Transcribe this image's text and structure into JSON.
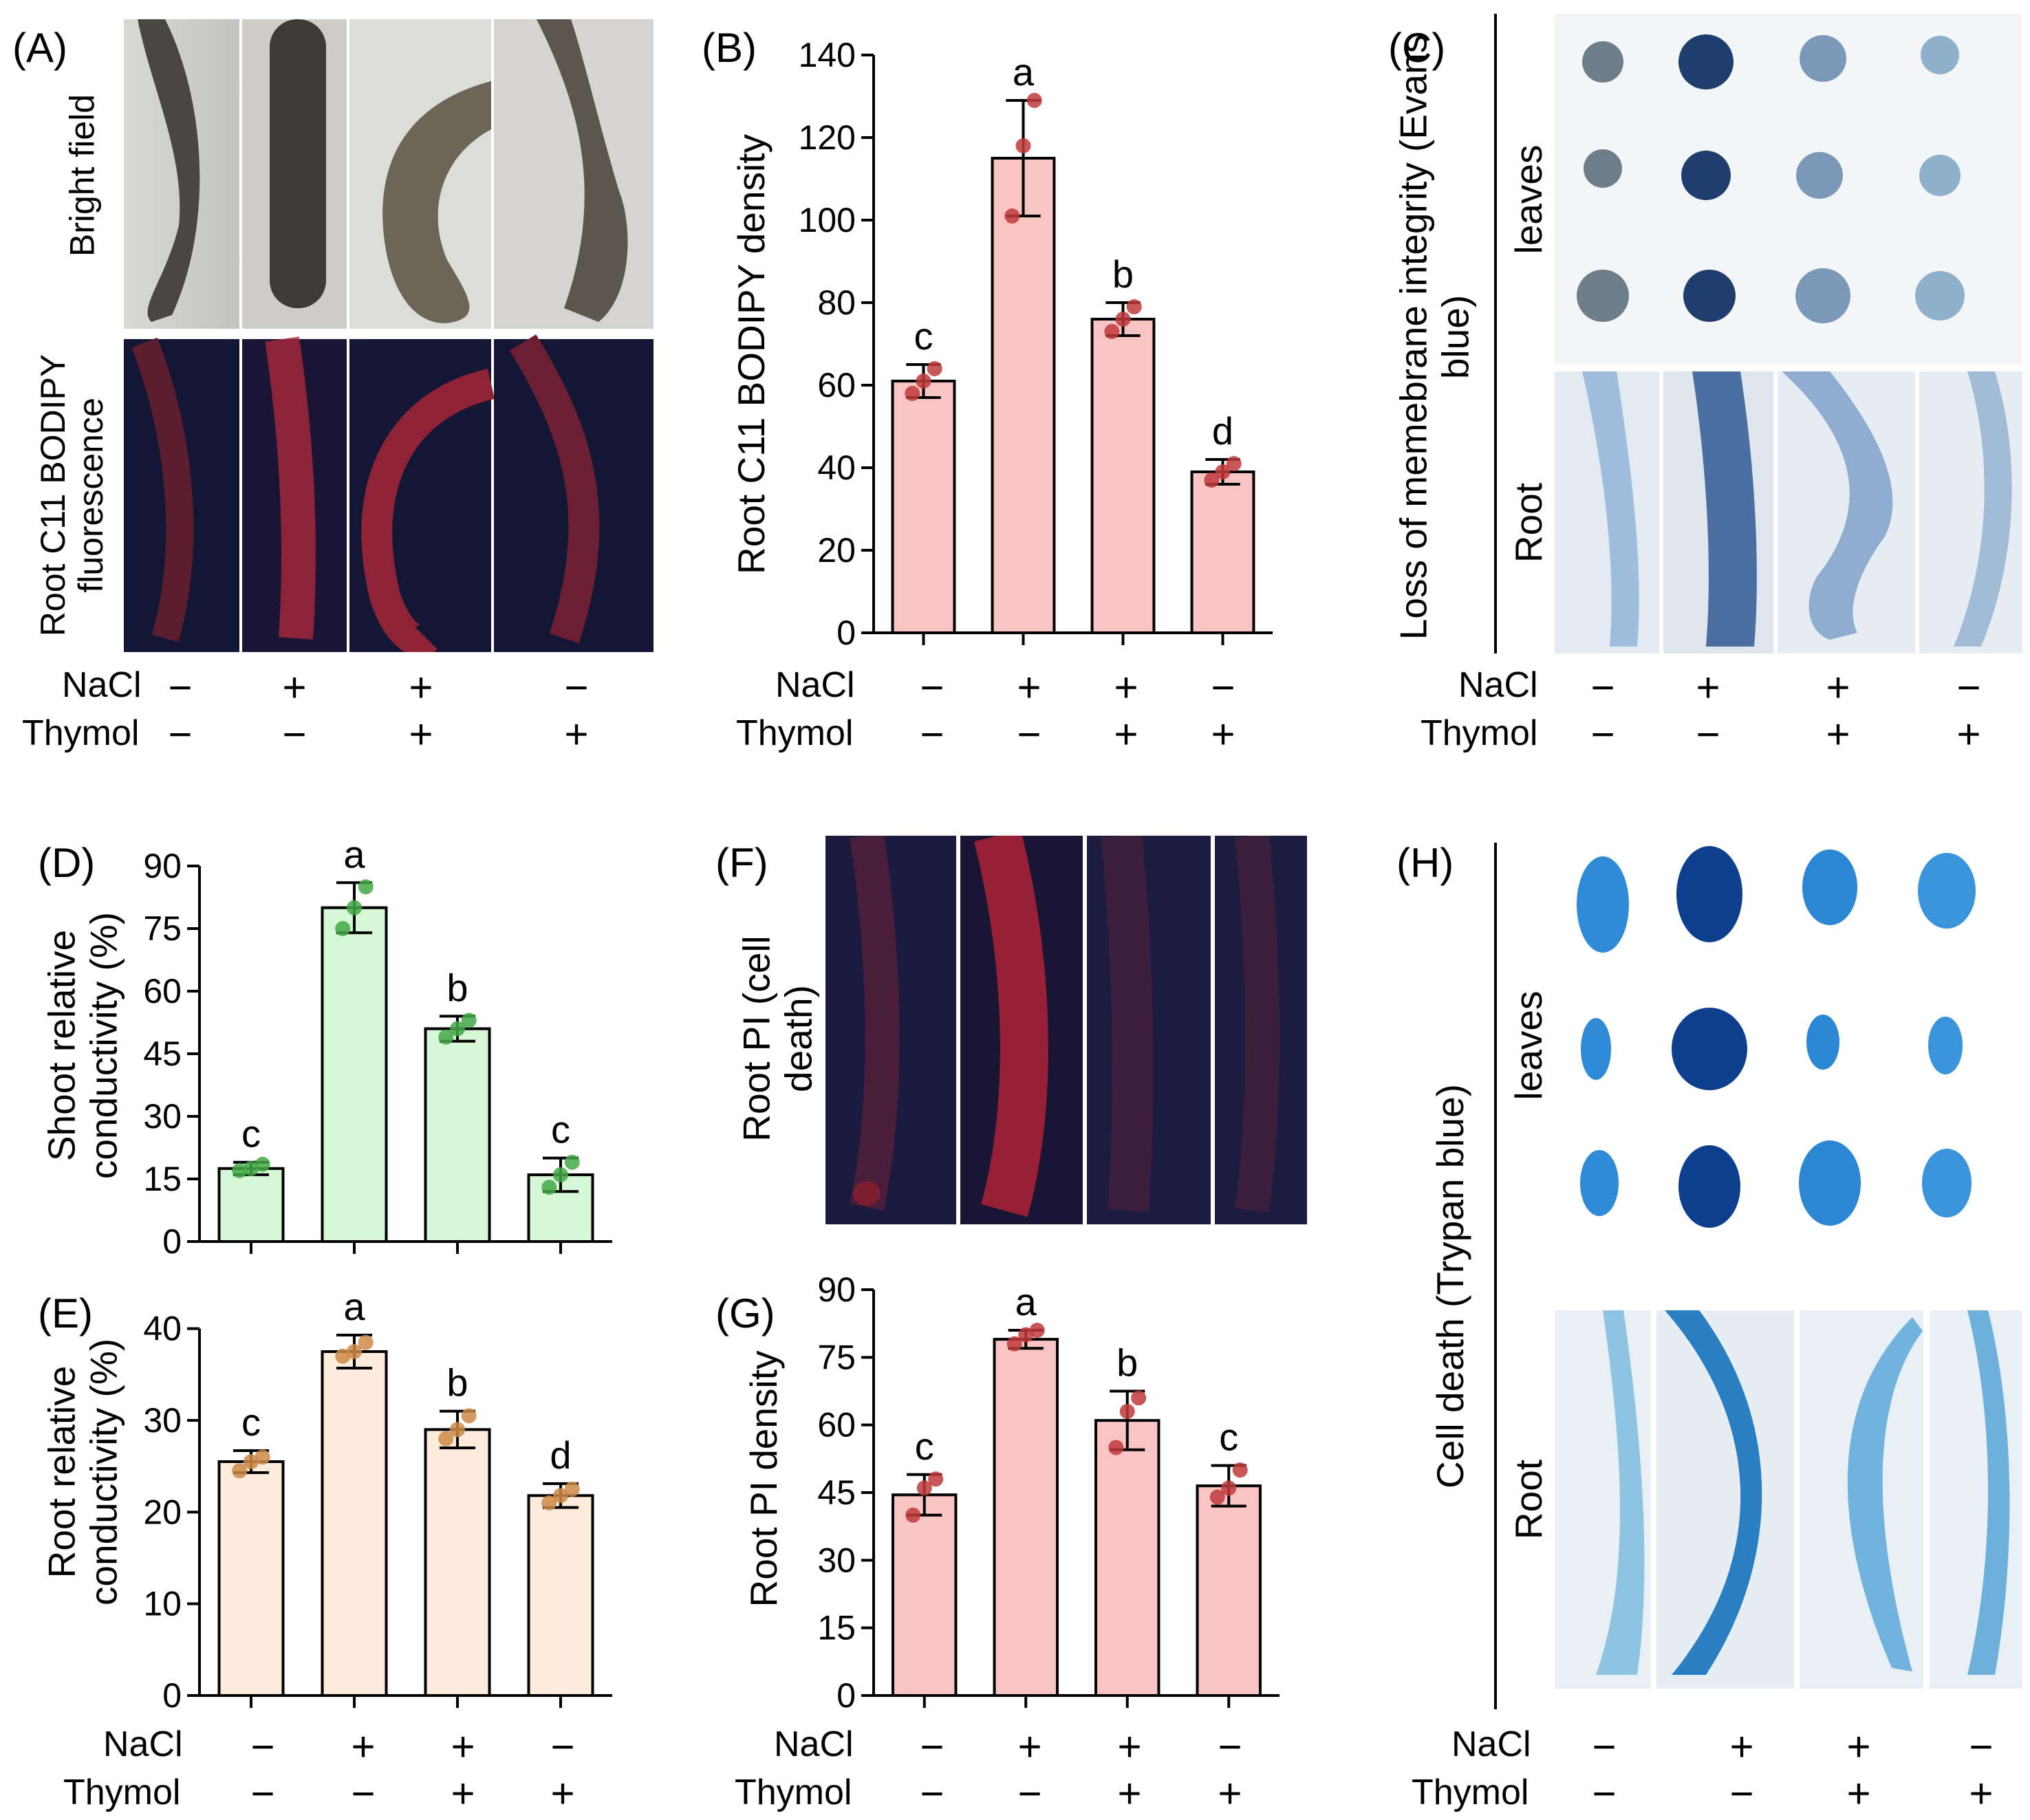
{
  "panels": {
    "A": {
      "label": "(A)",
      "row_labels": [
        "Bright field",
        "Root C11 BODIPY fluorescence"
      ]
    },
    "C": {
      "label": "(C)",
      "ylabel": "Loss of memebrane integrity (Evans blue)",
      "row_labels": [
        "leaves",
        "Root"
      ]
    },
    "F": {
      "label": "(F)",
      "ylabel": "Root PI (cell death)"
    },
    "H": {
      "label": "(H)",
      "ylabel": "Cell death (Trypan blue)",
      "row_labels": [
        "leaves",
        "Root"
      ]
    }
  },
  "treatments": {
    "row_names": [
      "NaCl",
      "Thymol"
    ],
    "NaCl": [
      "−",
      "+",
      "+",
      "−"
    ],
    "Thymol": [
      "−",
      "−",
      "+",
      "+"
    ]
  },
  "colors": {
    "pink_bar": "#f9c4c4",
    "pink_dot": "#c0393b",
    "green_bar": "#d6f8d6",
    "green_dot": "#43a845",
    "peach_bar": "#fdebdc",
    "peach_dot": "#cd8a46",
    "evans_blue": "#4f84b8",
    "trypan_blue": "#2a7fd0",
    "fluorescence_bg": "#141635",
    "fluorescence_red": "#d42a3a"
  },
  "chart_data": [
    {
      "panel": "(B)",
      "type": "bar",
      "ylabel": "Root C11 BODIPY density",
      "ylim": [
        0,
        140
      ],
      "yticks": [
        0,
        20,
        40,
        60,
        80,
        100,
        120,
        140
      ],
      "categories": [
        "NaCl− Thymol−",
        "NaCl+ Thymol−",
        "NaCl+ Thymol+",
        "NaCl− Thymol+"
      ],
      "values": [
        61,
        115,
        76,
        39
      ],
      "errors": [
        4,
        14,
        4,
        3
      ],
      "points": [
        [
          58,
          61,
          64
        ],
        [
          101,
          118,
          129
        ],
        [
          73,
          76,
          79
        ],
        [
          37,
          39,
          41
        ]
      ],
      "letters": [
        "c",
        "a",
        "b",
        "d"
      ]
    },
    {
      "panel": "(D)",
      "type": "bar",
      "ylabel": "Shoot relative conductivity (%)",
      "ylim": [
        0,
        90
      ],
      "yticks": [
        0,
        15,
        30,
        45,
        60,
        75,
        90
      ],
      "categories": [
        "NaCl− Thymol−",
        "NaCl+ Thymol−",
        "NaCl+ Thymol+",
        "NaCl− Thymol+"
      ],
      "values": [
        17.5,
        80,
        51,
        16
      ],
      "errors": [
        1.5,
        6,
        3,
        4
      ],
      "points": [
        [
          17,
          17.5,
          18.5
        ],
        [
          75,
          80,
          85
        ],
        [
          49,
          51,
          53
        ],
        [
          13,
          16,
          19
        ]
      ],
      "letters": [
        "c",
        "a",
        "b",
        "c"
      ]
    },
    {
      "panel": "(E)",
      "type": "bar",
      "ylabel": "Root relative conductivity (%)",
      "ylim": [
        0,
        45
      ],
      "yticks": [
        0,
        10,
        20,
        30,
        40
      ],
      "categories": [
        "NaCl− Thymol−",
        "NaCl+ Thymol−",
        "NaCl+ Thymol+",
        "NaCl− Thymol+"
      ],
      "values": [
        25.5,
        37.5,
        29,
        21.8
      ],
      "errors": [
        1.2,
        1.8,
        2,
        1.3
      ],
      "points": [
        [
          24.5,
          25.5,
          26
        ],
        [
          37,
          37.5,
          38.5
        ],
        [
          28,
          29,
          30.5
        ],
        [
          21,
          21.8,
          22.5
        ]
      ],
      "letters": [
        "c",
        "a",
        "b",
        "d"
      ]
    },
    {
      "panel": "(G)",
      "type": "bar",
      "ylabel": "Root PI density",
      "ylim": [
        0,
        90
      ],
      "yticks": [
        0,
        15,
        30,
        45,
        60,
        75,
        90
      ],
      "categories": [
        "NaCl− Thymol−",
        "NaCl+ Thymol−",
        "NaCl+ Thymol+",
        "NaCl− Thymol+"
      ],
      "values": [
        44.5,
        79,
        61,
        46.5
      ],
      "errors": [
        4.5,
        2,
        6.5,
        4.5
      ],
      "points": [
        [
          40,
          46,
          48
        ],
        [
          78,
          80,
          81
        ],
        [
          55,
          63,
          66
        ],
        [
          44,
          46,
          50
        ]
      ],
      "letters": [
        "c",
        "a",
        "b",
        "c"
      ]
    }
  ]
}
